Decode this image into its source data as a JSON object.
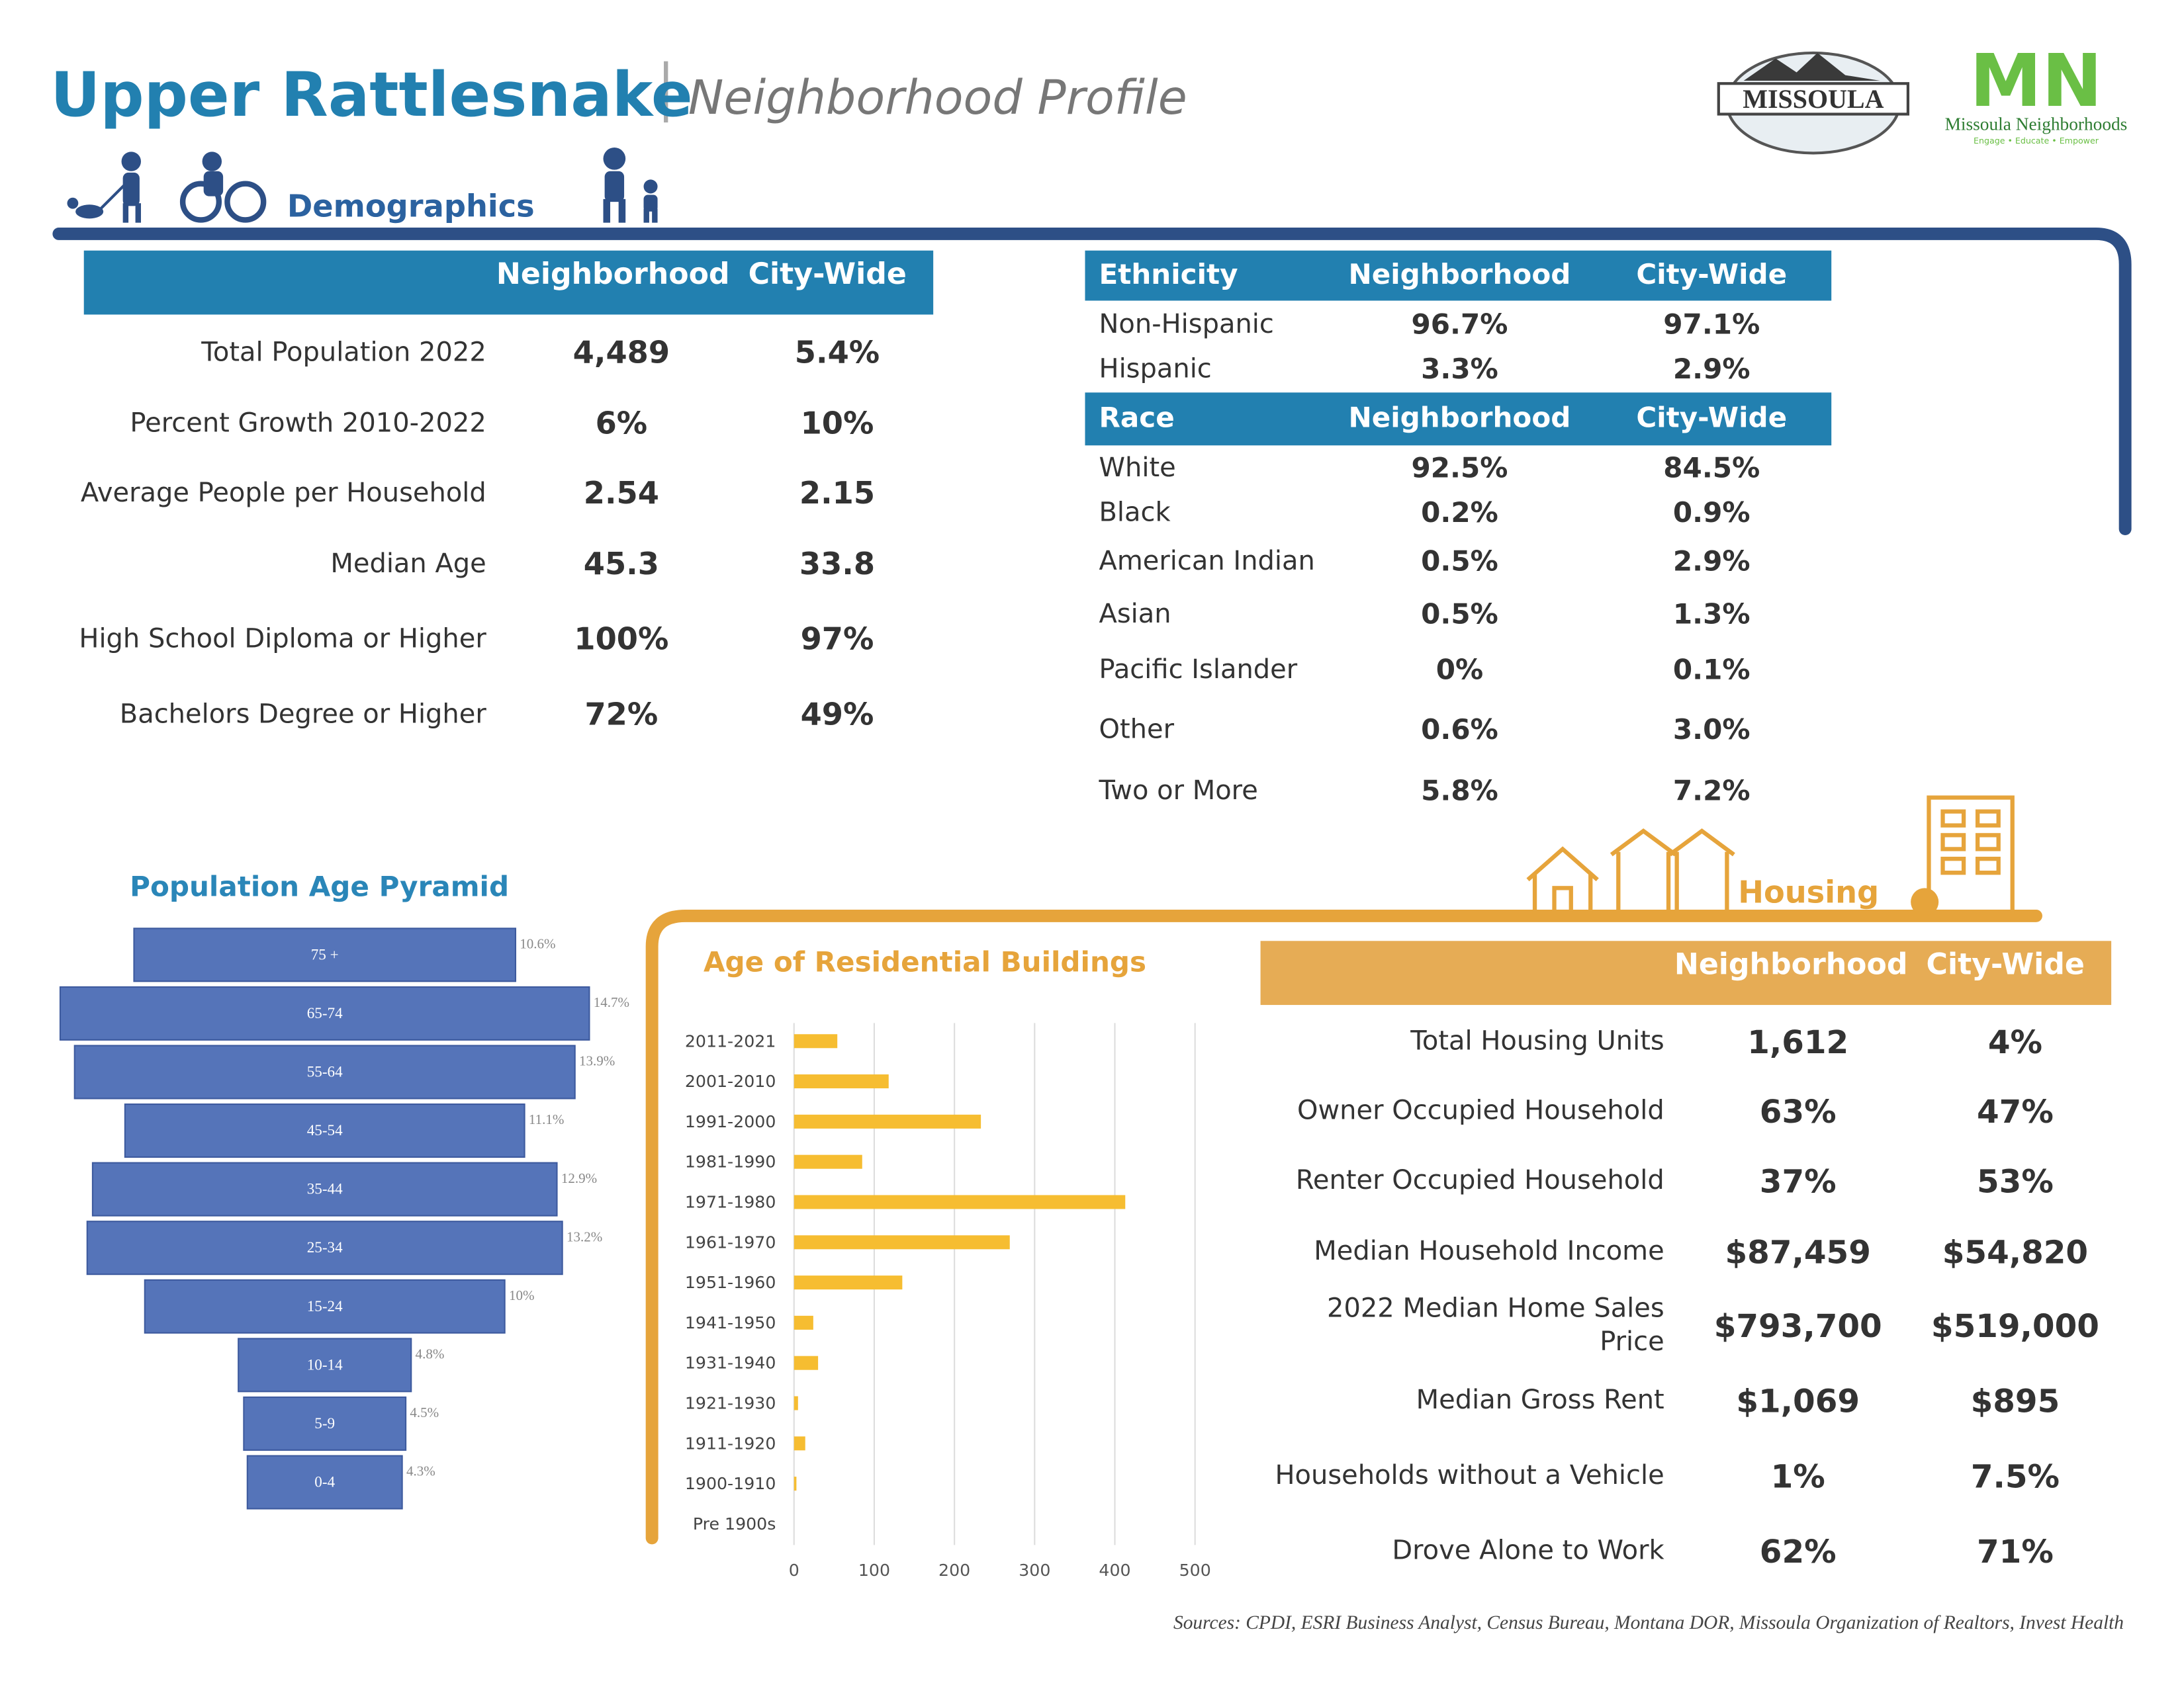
{
  "header": {
    "title": "Upper Rattlesnake",
    "subtitle": "Neighborhood Profile",
    "logo_text": "MISSOULA",
    "logo2_mark": "MN",
    "logo2_name": "Missoula Neighborhoods",
    "logo2_tagline": "Engage • Educate • Empower"
  },
  "demographics": {
    "heading": "Demographics",
    "columns": [
      "Neighborhood",
      "City-Wide"
    ],
    "rows": [
      [
        "Total Population 2022",
        "4,489",
        "5.4%"
      ],
      [
        "Percent Growth 2010-2022",
        "6%",
        "10%"
      ],
      [
        "Average People per Household",
        "2.54",
        "2.15"
      ],
      [
        "Median Age",
        "45.3",
        "33.8"
      ],
      [
        "High School Diploma or Higher",
        "100%",
        "97%"
      ],
      [
        "Bachelors Degree or Higher",
        "72%",
        "49%"
      ]
    ]
  },
  "ethnicity": {
    "columns": [
      "Ethnicity",
      "Neighborhood",
      "City-Wide"
    ],
    "rows": [
      [
        "Non-Hispanic",
        "96.7%",
        "97.1%"
      ],
      [
        "Hispanic",
        "3.3%",
        "2.9%"
      ]
    ]
  },
  "race": {
    "columns": [
      "Race",
      "Neighborhood",
      "City-Wide"
    ],
    "rows": [
      [
        "White",
        "92.5%",
        "84.5%"
      ],
      [
        "Black",
        "0.2%",
        "0.9%"
      ],
      [
        "American Indian",
        "0.5%",
        "2.9%"
      ],
      [
        "Asian",
        "0.5%",
        "1.3%"
      ],
      [
        "Pacific Islander",
        "0%",
        "0.1%"
      ],
      [
        "Other",
        "0.6%",
        "3.0%"
      ],
      [
        "Two or More",
        "5.8%",
        "7.2%"
      ]
    ]
  },
  "pyramid": {
    "type": "bar",
    "title": "Population Age Pyramid",
    "categories": [
      "75 +",
      "65-74",
      "55-64",
      "45-54",
      "35-44",
      "25-34",
      "15-24",
      "10-14",
      "5-9",
      "0-4"
    ],
    "values": [
      10.6,
      14.7,
      13.9,
      11.1,
      12.9,
      13.2,
      10,
      4.8,
      4.5,
      4.3
    ],
    "value_labels": [
      "10.6%",
      "14.7%",
      "13.9%",
      "11.1%",
      "12.9%",
      "13.2%",
      "10%",
      "4.8%",
      "4.5%",
      "4.3%"
    ],
    "color": "#5574b9"
  },
  "buildings": {
    "type": "bar",
    "title": "Age of Residential Buildings",
    "categories": [
      "2011-2021",
      "2001-2010",
      "1991-2000",
      "1981-1990",
      "1971-1980",
      "1961-1970",
      "1951-1960",
      "1941-1950",
      "1931-1940",
      "1921-1930",
      "1911-1920",
      "1900-1910",
      "Pre 1900s"
    ],
    "values": [
      54,
      118,
      233,
      85,
      413,
      269,
      135,
      24,
      30,
      5,
      14,
      3,
      0
    ],
    "xlim": [
      0,
      500
    ],
    "xticks": [
      0,
      100,
      200,
      300,
      400,
      500
    ],
    "grid": true,
    "color": "#f6bd31"
  },
  "housing": {
    "heading": "Housing",
    "columns": [
      "Neighborhood",
      "City-Wide"
    ],
    "rows": [
      [
        "Total Housing Units",
        "1,612",
        "4%"
      ],
      [
        "Owner Occupied Household",
        "63%",
        "47%"
      ],
      [
        "Renter Occupied Household",
        "37%",
        "53%"
      ],
      [
        "Median Household Income",
        "$87,459",
        "$54,820"
      ],
      [
        "2022 Median Home Sales Price",
        "$793,700",
        "$519,000"
      ],
      [
        "Median Gross Rent",
        "$1,069",
        "$895"
      ],
      [
        "Households without a Vehicle",
        "1%",
        "7.5%"
      ],
      [
        "Drove Alone to Work",
        "62%",
        "71%"
      ]
    ]
  },
  "sources": "Sources: CPDI, ESRI Business Analyst, Census Bureau, Montana DOR, Missoula Organization of Realtors, Invest Health"
}
